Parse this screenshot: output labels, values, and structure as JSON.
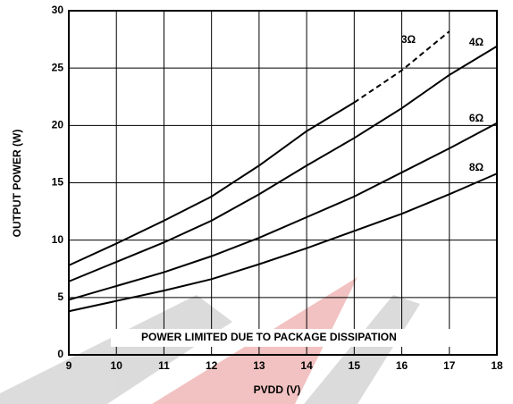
{
  "chart_data": {
    "type": "line",
    "x_label": "PVDD (V)",
    "y_label": "OUTPUT POWER (W)",
    "x": [
      9,
      10,
      11,
      12,
      13,
      14,
      15,
      16,
      17,
      18
    ],
    "series": [
      {
        "name": "3Ω",
        "color": "#000000",
        "dash": false,
        "values": [
          7.8,
          9.7,
          11.7,
          13.8,
          16.5,
          19.5,
          22,
          null,
          null,
          null
        ]
      },
      {
        "name": "POWER LIMITED DUE TO PACKAGE DISSIPATION",
        "color": "#000000",
        "dash": true,
        "values": [
          null,
          null,
          null,
          null,
          null,
          null,
          22,
          24.8,
          28.2,
          null
        ]
      },
      {
        "name": "4Ω",
        "color": "#000000",
        "dash": false,
        "values": [
          6.4,
          8.1,
          9.8,
          11.7,
          14,
          16.5,
          18.9,
          21.5,
          24.4,
          26.9
        ]
      },
      {
        "name": "6Ω",
        "color": "#000000",
        "dash": false,
        "values": [
          4.8,
          6,
          7.2,
          8.6,
          10.2,
          12,
          13.8,
          15.9,
          18,
          20.2
        ]
      },
      {
        "name": "8Ω",
        "color": "#000000",
        "dash": false,
        "values": [
          3.8,
          4.7,
          5.6,
          6.6,
          7.9,
          9.3,
          10.8,
          12.3,
          14,
          15.8
        ]
      }
    ],
    "xlim": [
      9,
      18
    ],
    "xticks": [
      9,
      10,
      11,
      12,
      13,
      14,
      15,
      16,
      17,
      18
    ],
    "ylim": [
      0,
      30
    ],
    "yticks": [
      0,
      5,
      10,
      15,
      20,
      25,
      30
    ],
    "grid": true
  }
}
